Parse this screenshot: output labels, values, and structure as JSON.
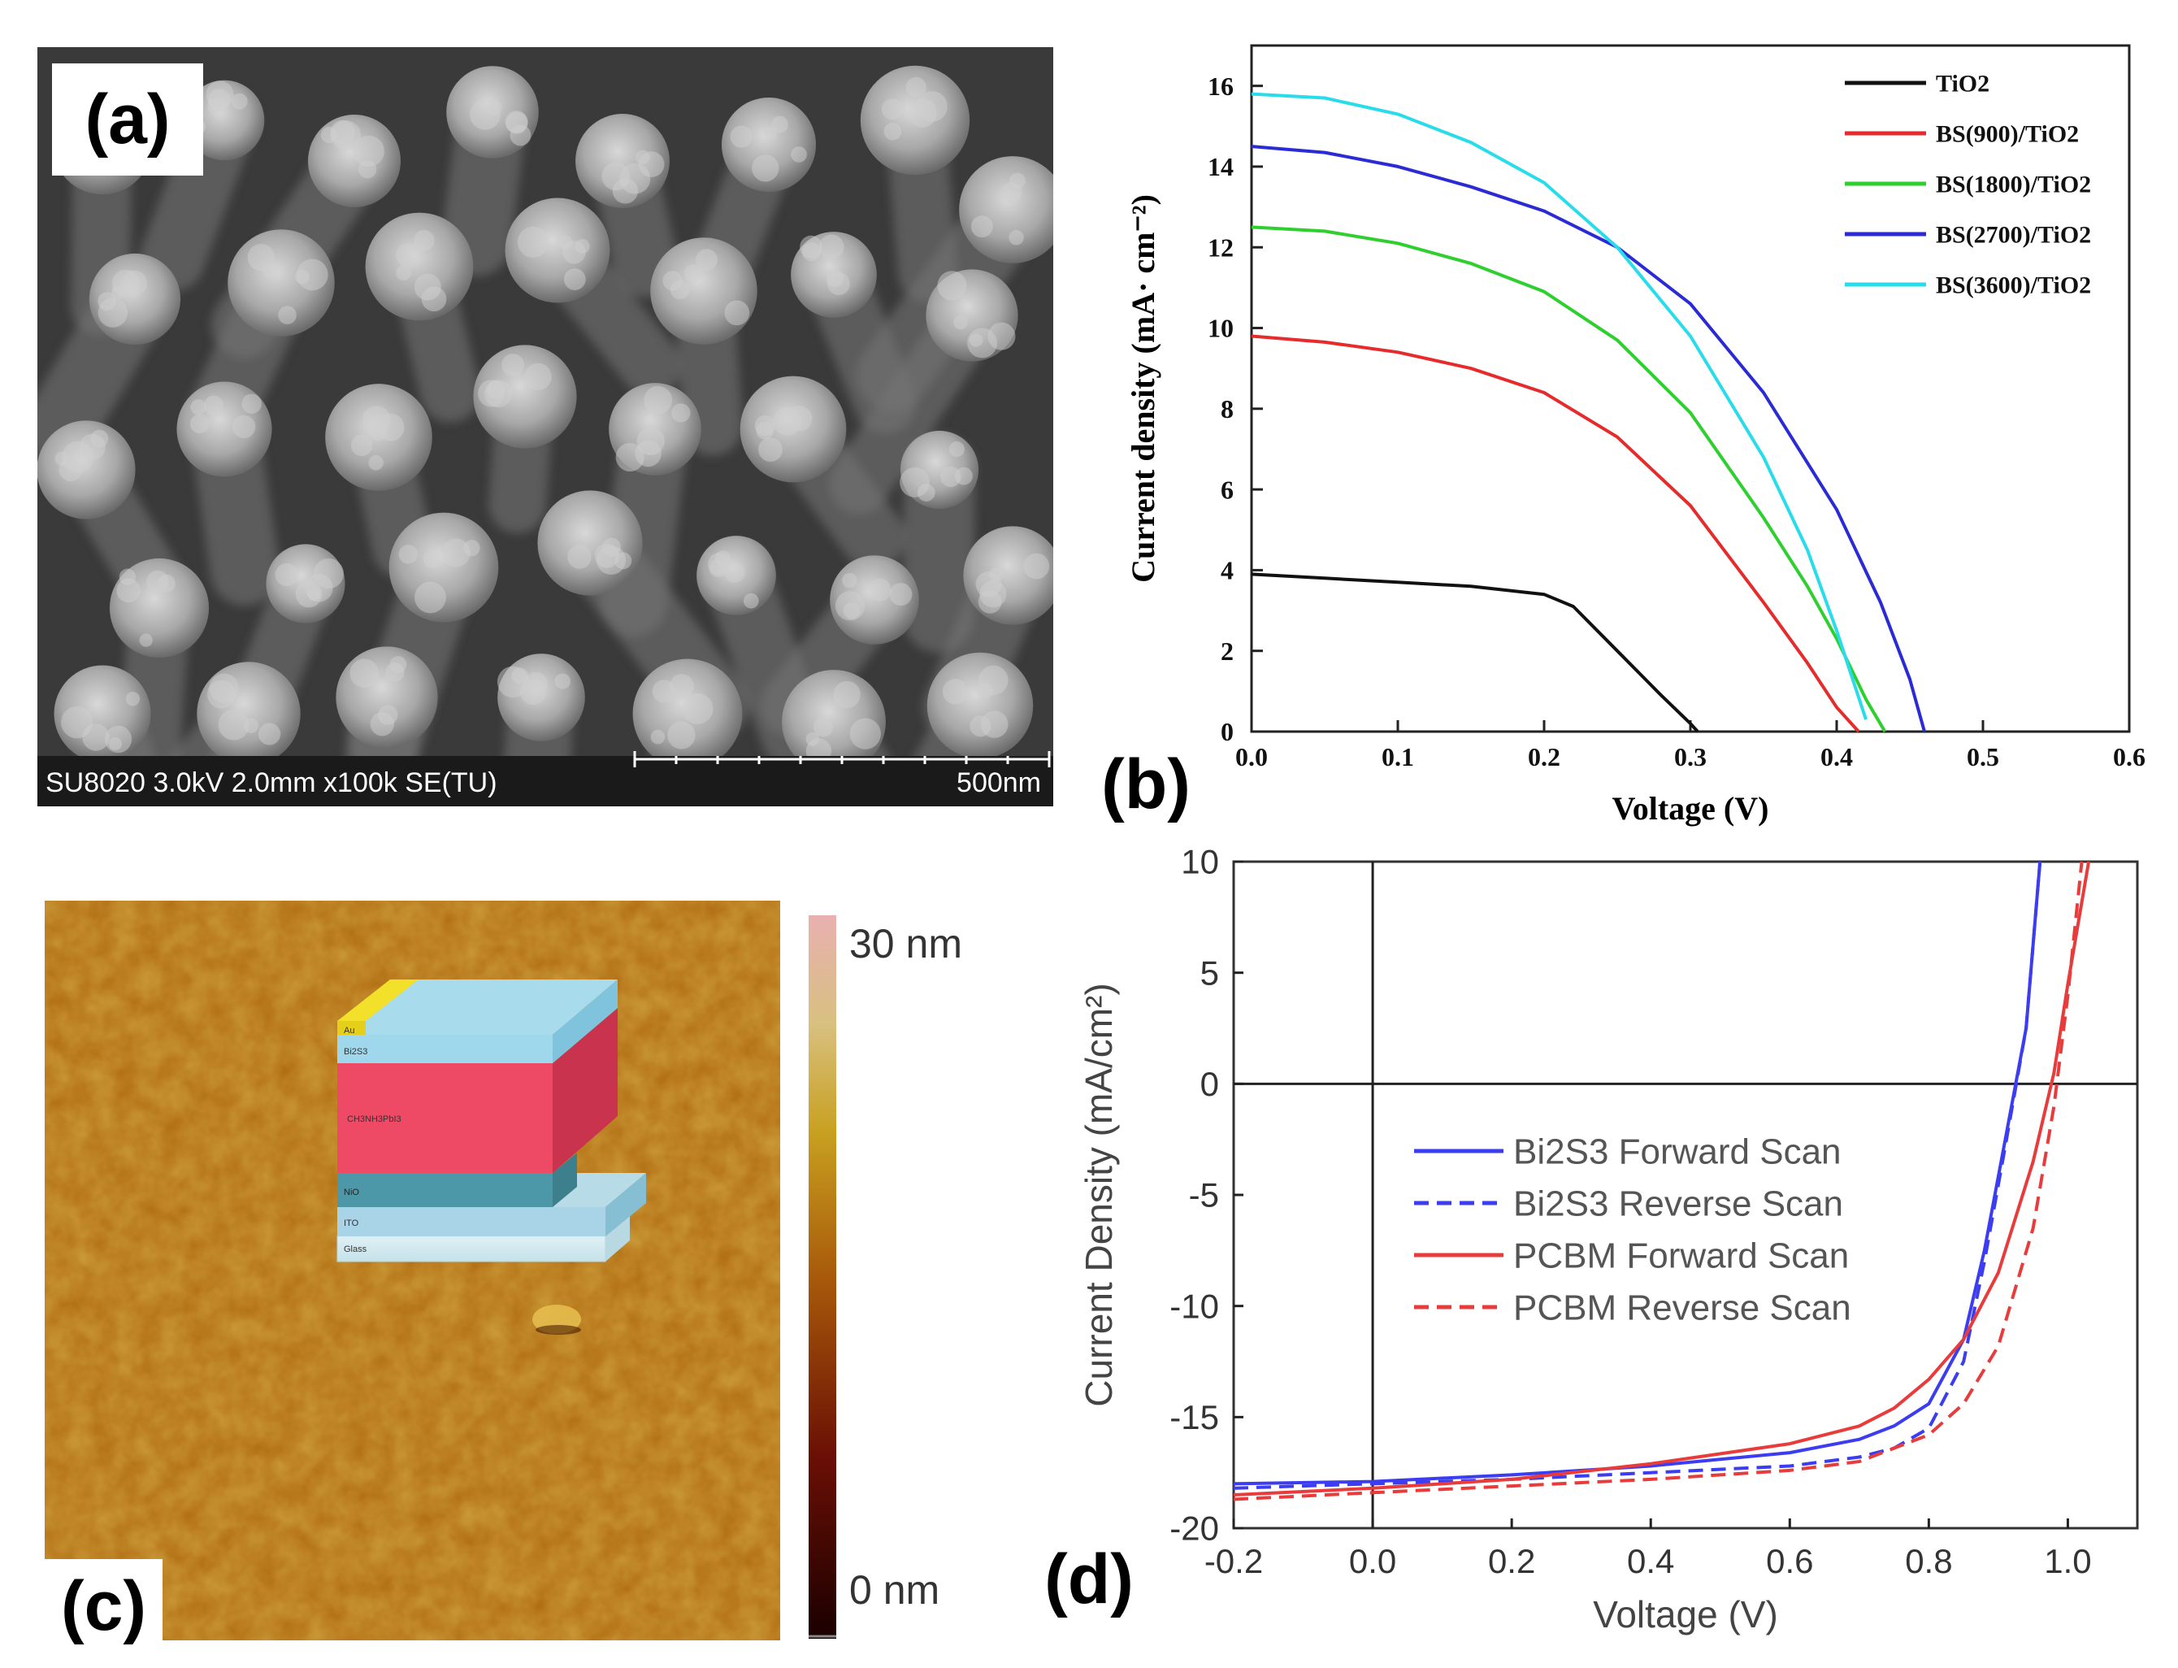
{
  "panels": {
    "a": {
      "label": "(a)",
      "info_bar": "SU8020 3.0kV 2.0mm x100k SE(TU)",
      "scale_bar": "500nm"
    },
    "b": {
      "label": "(b)"
    },
    "c": {
      "label": "(c)",
      "colorbar_max": "30 nm",
      "colorbar_min": "0 nm",
      "layers": [
        "Au",
        "Bi2S3",
        "CH3NH3PbI3",
        "NiO",
        "ITO",
        "Glass"
      ]
    },
    "d": {
      "label": "(d)"
    }
  },
  "chart_data": [
    {
      "type": "line",
      "panel": "b",
      "xlabel": "Voltage (V)",
      "ylabel": "Current density (mA· cm⁻²)",
      "xlim": [
        0.0,
        0.6
      ],
      "ylim": [
        0,
        17
      ],
      "xticks": [
        0.0,
        0.1,
        0.2,
        0.3,
        0.4,
        0.5,
        0.6
      ],
      "yticks": [
        0,
        2,
        4,
        6,
        8,
        10,
        12,
        14,
        16
      ],
      "legend_position": "top-right",
      "series": [
        {
          "name": "TiO2",
          "color": "#111111",
          "x": [
            0.0,
            0.05,
            0.1,
            0.15,
            0.2,
            0.22,
            0.25,
            0.28,
            0.3,
            0.305
          ],
          "y": [
            3.9,
            3.8,
            3.7,
            3.6,
            3.4,
            3.1,
            2.0,
            0.9,
            0.2,
            0.0
          ]
        },
        {
          "name": "BS(900)/TiO2",
          "color": "#e52b2b",
          "x": [
            0.0,
            0.05,
            0.1,
            0.15,
            0.2,
            0.25,
            0.3,
            0.35,
            0.38,
            0.4,
            0.415
          ],
          "y": [
            9.8,
            9.65,
            9.4,
            9.0,
            8.4,
            7.3,
            5.6,
            3.2,
            1.7,
            0.6,
            0.0
          ]
        },
        {
          "name": "BS(1800)/TiO2",
          "color": "#2ecf2e",
          "x": [
            0.0,
            0.05,
            0.1,
            0.15,
            0.2,
            0.25,
            0.3,
            0.35,
            0.38,
            0.4,
            0.42,
            0.433
          ],
          "y": [
            12.5,
            12.4,
            12.1,
            11.6,
            10.9,
            9.7,
            7.9,
            5.3,
            3.6,
            2.3,
            0.8,
            0.0
          ]
        },
        {
          "name": "BS(2700)/TiO2",
          "color": "#2b2bd6",
          "x": [
            0.0,
            0.05,
            0.1,
            0.15,
            0.2,
            0.25,
            0.3,
            0.35,
            0.4,
            0.43,
            0.45,
            0.46
          ],
          "y": [
            14.5,
            14.35,
            14.0,
            13.5,
            12.9,
            12.0,
            10.6,
            8.4,
            5.5,
            3.2,
            1.3,
            0.0
          ]
        },
        {
          "name": "BS(3600)/TiO2",
          "color": "#28dcea",
          "x": [
            0.0,
            0.05,
            0.1,
            0.15,
            0.2,
            0.25,
            0.3,
            0.35,
            0.38,
            0.4,
            0.42
          ],
          "y": [
            15.8,
            15.7,
            15.3,
            14.6,
            13.6,
            12.0,
            9.8,
            6.8,
            4.5,
            2.5,
            0.3
          ]
        }
      ]
    },
    {
      "type": "line",
      "panel": "d",
      "xlabel": "Voltage (V)",
      "ylabel": "Current Density (mA/cm²)",
      "xlim": [
        -0.2,
        1.1
      ],
      "ylim": [
        -20,
        10
      ],
      "xticks": [
        -0.2,
        0.0,
        0.2,
        0.4,
        0.6,
        0.8,
        1.0
      ],
      "yticks": [
        -20,
        -15,
        -10,
        -5,
        0,
        5,
        10
      ],
      "legend_position": "center-left",
      "series": [
        {
          "name": "Bi2S3 Forward Scan",
          "color": "#3c3cf0",
          "style": "solid",
          "x": [
            -0.2,
            0.0,
            0.2,
            0.4,
            0.6,
            0.7,
            0.75,
            0.8,
            0.85,
            0.88,
            0.91,
            0.94,
            0.96
          ],
          "y": [
            -18.0,
            -17.9,
            -17.6,
            -17.2,
            -16.6,
            -16.0,
            -15.4,
            -14.4,
            -11.5,
            -7.5,
            -2.5,
            2.5,
            10.0
          ]
        },
        {
          "name": "Bi2S3 Reverse Scan",
          "color": "#3c3cf0",
          "style": "dashed",
          "x": [
            -0.2,
            0.0,
            0.2,
            0.4,
            0.6,
            0.7,
            0.75,
            0.8,
            0.85,
            0.88,
            0.91,
            0.94,
            0.96
          ],
          "y": [
            -18.2,
            -18.0,
            -17.8,
            -17.5,
            -17.2,
            -16.8,
            -16.4,
            -15.5,
            -12.5,
            -8.0,
            -2.8,
            2.5,
            10.0
          ]
        },
        {
          "name": "PCBM Forward Scan",
          "color": "#e83c3c",
          "style": "solid",
          "x": [
            -0.2,
            0.0,
            0.2,
            0.4,
            0.6,
            0.7,
            0.75,
            0.8,
            0.85,
            0.9,
            0.95,
            0.98,
            1.0,
            1.03
          ],
          "y": [
            -18.5,
            -18.2,
            -17.8,
            -17.1,
            -16.2,
            -15.4,
            -14.6,
            -13.3,
            -11.5,
            -8.5,
            -3.5,
            0.5,
            4.5,
            10.0
          ]
        },
        {
          "name": "PCBM Reverse Scan",
          "color": "#e83c3c",
          "style": "dashed",
          "x": [
            -0.2,
            0.0,
            0.2,
            0.4,
            0.6,
            0.7,
            0.8,
            0.85,
            0.9,
            0.95,
            0.98,
            1.0,
            1.02
          ],
          "y": [
            -18.7,
            -18.4,
            -18.1,
            -17.8,
            -17.4,
            -17.0,
            -15.8,
            -14.4,
            -11.8,
            -6.5,
            -1.0,
            4.0,
            10.0
          ]
        }
      ]
    }
  ]
}
